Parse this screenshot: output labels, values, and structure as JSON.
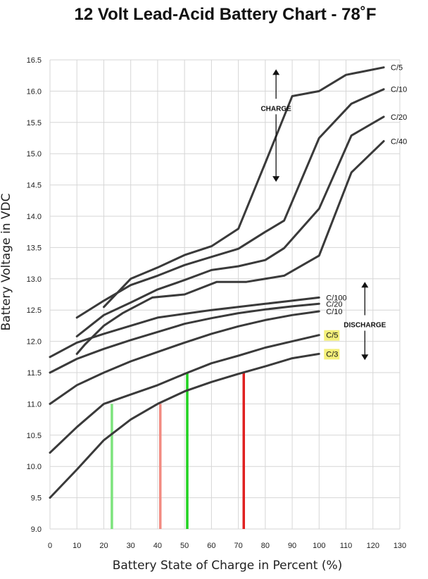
{
  "chart_data": {
    "type": "line",
    "title": "12 Volt Lead-Acid Battery Chart - 78˚F",
    "xlabel": "Battery State of Charge in Percent (%)",
    "ylabel": "Battery Voltage in VDC",
    "xlim": [
      0,
      130
    ],
    "ylim": [
      9.0,
      16.5
    ],
    "x_ticks": [
      0,
      10,
      20,
      30,
      40,
      50,
      60,
      70,
      80,
      90,
      100,
      110,
      120,
      130
    ],
    "y_ticks": [
      9.0,
      9.5,
      10.0,
      10.5,
      11.0,
      11.5,
      12.0,
      12.5,
      13.0,
      13.5,
      14.0,
      14.5,
      15.0,
      15.5,
      16.0,
      16.5
    ],
    "grid": true,
    "series": [
      {
        "name": "C/5",
        "group": "charge",
        "highlight": false,
        "color": "#3a3a3a",
        "x": [
          20,
          30,
          40,
          50,
          60,
          70,
          80,
          90,
          100,
          110,
          124
        ],
        "y": [
          12.55,
          13.0,
          13.18,
          13.38,
          13.52,
          13.8,
          14.85,
          15.92,
          16.0,
          16.26,
          16.38
        ]
      },
      {
        "name": "C/10",
        "group": "charge",
        "highlight": false,
        "color": "#3a3a3a",
        "x": [
          10,
          20,
          30,
          40,
          50,
          60,
          70,
          80,
          87,
          100,
          112,
          124
        ],
        "y": [
          12.38,
          12.65,
          12.9,
          13.05,
          13.22,
          13.35,
          13.48,
          13.75,
          13.93,
          15.25,
          15.8,
          16.03
        ]
      },
      {
        "name": "C/20",
        "group": "charge",
        "highlight": false,
        "color": "#3a3a3a",
        "x": [
          10,
          20,
          30,
          40,
          50,
          60,
          70,
          80,
          87,
          100,
          112,
          124
        ],
        "y": [
          12.08,
          12.42,
          12.62,
          12.83,
          12.98,
          13.14,
          13.2,
          13.3,
          13.49,
          14.12,
          15.29,
          15.59
        ]
      },
      {
        "name": "C/40",
        "group": "charge",
        "highlight": false,
        "color": "#3a3a3a",
        "x": [
          10,
          13,
          20,
          27,
          38,
          50,
          62,
          73,
          87,
          100,
          112,
          124
        ],
        "y": [
          11.8,
          11.95,
          12.25,
          12.45,
          12.7,
          12.75,
          12.95,
          12.95,
          13.05,
          13.37,
          14.7,
          15.2
        ]
      },
      {
        "name": "C/100",
        "group": "discharge",
        "highlight": false,
        "color": "#3a3a3a",
        "x": [
          0,
          10,
          20,
          30,
          40,
          50,
          60,
          70,
          80,
          90,
          100
        ],
        "y": [
          11.75,
          11.98,
          12.12,
          12.25,
          12.38,
          12.44,
          12.5,
          12.55,
          12.6,
          12.65,
          12.7
        ]
      },
      {
        "name": "C/20",
        "group": "discharge",
        "highlight": false,
        "color": "#3a3a3a",
        "x": [
          0,
          10,
          20,
          30,
          40,
          50,
          60,
          70,
          80,
          90,
          100
        ],
        "y": [
          11.5,
          11.72,
          11.88,
          12.02,
          12.15,
          12.28,
          12.37,
          12.45,
          12.51,
          12.56,
          12.6
        ]
      },
      {
        "name": "C/10",
        "group": "discharge",
        "highlight": false,
        "color": "#3a3a3a",
        "x": [
          0,
          10,
          20,
          30,
          40,
          50,
          60,
          70,
          80,
          90,
          100
        ],
        "y": [
          11.0,
          11.3,
          11.5,
          11.68,
          11.83,
          11.98,
          12.12,
          12.24,
          12.34,
          12.42,
          12.48
        ]
      },
      {
        "name": "C/5",
        "group": "discharge",
        "highlight": true,
        "color": "#3a3a3a",
        "x": [
          0,
          10,
          20,
          30,
          40,
          50,
          60,
          70,
          80,
          90,
          100
        ],
        "y": [
          10.22,
          10.63,
          11.0,
          11.15,
          11.3,
          11.48,
          11.65,
          11.77,
          11.9,
          12.0,
          12.1
        ]
      },
      {
        "name": "C/3",
        "group": "discharge",
        "highlight": true,
        "color": "#3a3a3a",
        "x": [
          0,
          10,
          20,
          30,
          40,
          50,
          60,
          70,
          80,
          90,
          100
        ],
        "y": [
          9.5,
          9.95,
          10.42,
          10.75,
          11.0,
          11.2,
          11.35,
          11.48,
          11.6,
          11.73,
          11.8
        ]
      }
    ],
    "markers": [
      {
        "color": "#7de37d",
        "x": 23,
        "y_top": 11.0,
        "y_bottom": 9.0
      },
      {
        "color": "#f28b82",
        "x": 41,
        "y_top": 11.0,
        "y_bottom": 9.0
      },
      {
        "color": "#1fd21f",
        "x": 51,
        "y_top": 11.5,
        "y_bottom": 9.0
      },
      {
        "color": "#e02020",
        "x": 72,
        "y_top": 11.5,
        "y_bottom": 9.0
      }
    ],
    "annotations": [
      {
        "text": "CHARGE",
        "arrow": "both"
      },
      {
        "text": "DISCHARGE",
        "arrow": "both"
      }
    ],
    "highlight_color": "#f4f07a"
  }
}
